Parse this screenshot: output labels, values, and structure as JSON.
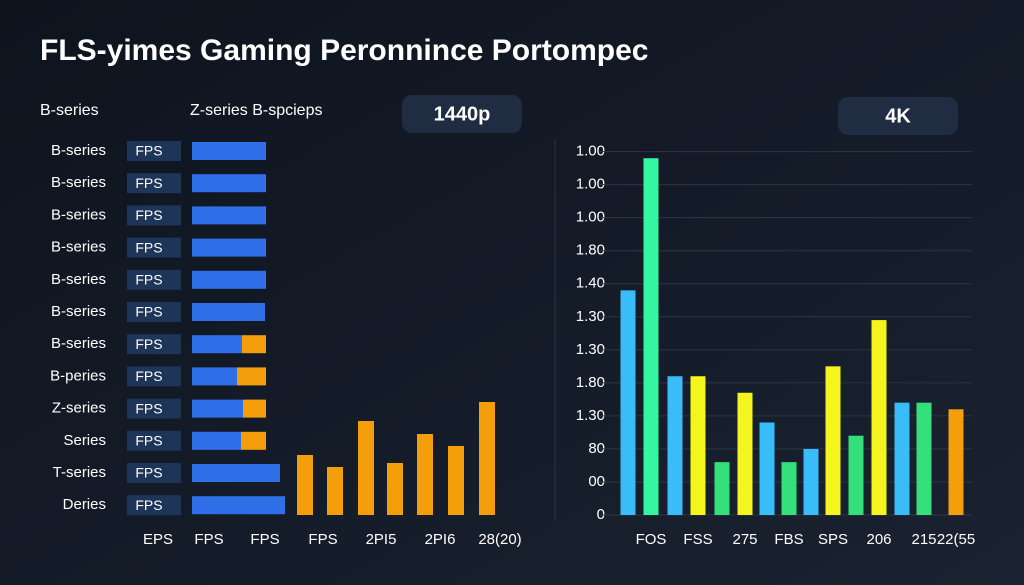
{
  "title": "FLS-yimes Gaming Peronnince Portompec",
  "chart_data": [
    {
      "type": "hbar",
      "title": "1440p",
      "column_headers": [
        "B-series",
        "Z-series B-spcieps"
      ],
      "badge": "FPS",
      "categories": [
        "B-series",
        "B-series",
        "B-series",
        "B-series",
        "B-series",
        "B-series",
        "B-series",
        "B-peries",
        "Z-series",
        "Series",
        "T-series",
        "Deries"
      ],
      "xlim": [
        0,
        100
      ],
      "series": [
        {
          "color": "#2f6fe8",
          "values": [
            74,
            74,
            74,
            74,
            74,
            73,
            50,
            45,
            51,
            49,
            88,
            93
          ]
        },
        {
          "color": "#f59e0b",
          "values": [
            0,
            0,
            0,
            0,
            0,
            0,
            24,
            29,
            23,
            25,
            0,
            0
          ]
        }
      ]
    },
    {
      "type": "bar",
      "categories": [
        "EPS",
        "FPS",
        "FPS",
        "FPS",
        "2PI5",
        "2PI6",
        "28(20)"
      ],
      "values": [
        60,
        48,
        94,
        52,
        81,
        69,
        113
      ],
      "color": "#f59e0b",
      "ylim": [
        0,
        120
      ]
    },
    {
      "type": "bar",
      "title": "4K",
      "categories": [
        null,
        "FOS",
        null,
        "FSS",
        null,
        "275",
        null,
        "FBS",
        null,
        "SPS",
        null,
        "206",
        null,
        "215",
        "22(55"
      ],
      "values": [
        6.8,
        10.8,
        4.2,
        4.2,
        1.6,
        3.7,
        2.8,
        1.6,
        2.0,
        4.5,
        2.4,
        5.9,
        3.4,
        3.4,
        3.2
      ],
      "colors": [
        "#38bdf8",
        "#34f5a0",
        "#38bdf8",
        "#f5f51e",
        "#34e07a",
        "#f5f51e",
        "#38bdf8",
        "#34e07a",
        "#38bdf8",
        "#f5f51e",
        "#34e07a",
        "#f5f51e",
        "#38bdf8",
        "#34e07a",
        "#f59e0b"
      ],
      "ylim": [
        0,
        11.2
      ],
      "yticks": [
        {
          "value": 0,
          "label": "0"
        },
        {
          "value": 1,
          "label": "00"
        },
        {
          "value": 2,
          "label": "80"
        },
        {
          "value": 3,
          "label": "1.30"
        },
        {
          "value": 4,
          "label": "1.80"
        },
        {
          "value": 5,
          "label": "1.30"
        },
        {
          "value": 6,
          "label": "1.30"
        },
        {
          "value": 7,
          "label": "1.40"
        },
        {
          "value": 8,
          "label": "1.80"
        },
        {
          "value": 9,
          "label": "1.00"
        },
        {
          "value": 10,
          "label": "1.00"
        },
        {
          "value": 11,
          "label": "1.00"
        }
      ],
      "grid": true
    }
  ]
}
